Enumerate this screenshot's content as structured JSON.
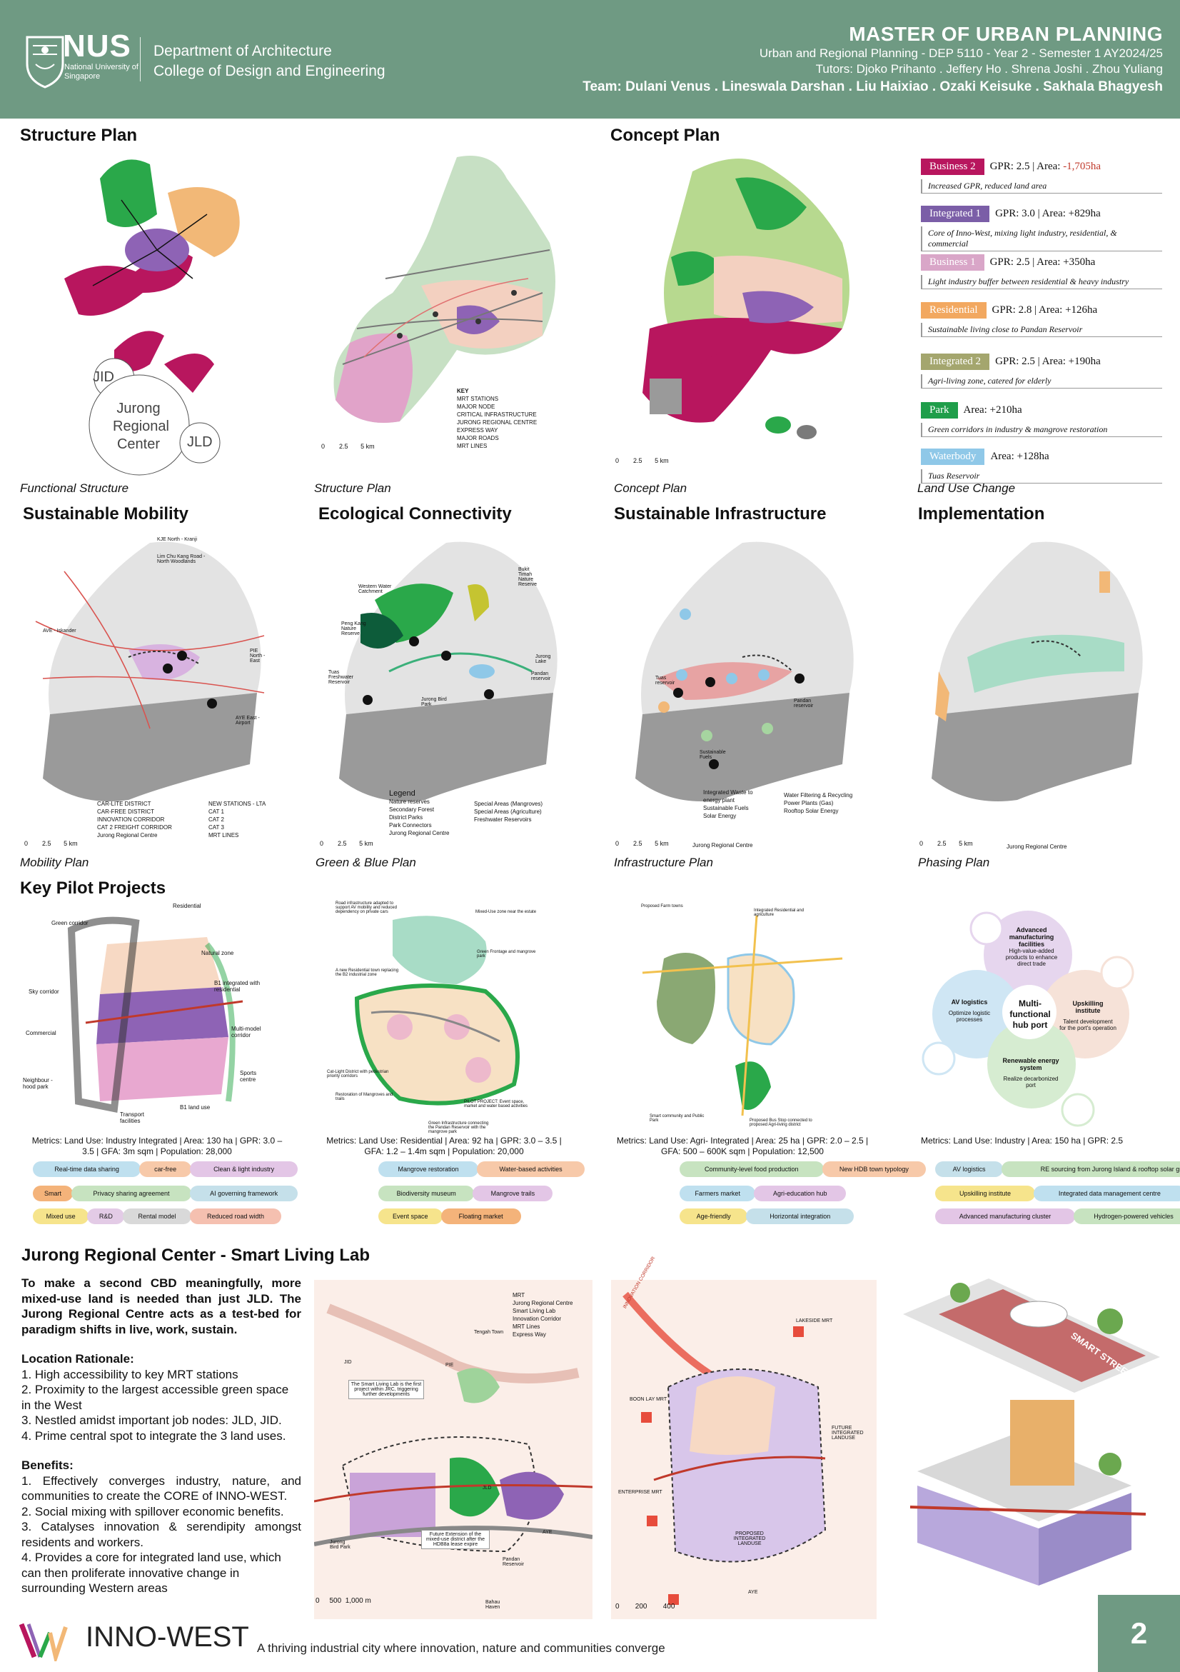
{
  "header": {
    "nus": "NUS",
    "nus_sub": "National University of Singapore",
    "dept_line1": "Department of Architecture",
    "dept_line2": "College of Design and Engineering",
    "title": "MASTER OF URBAN PLANNING",
    "course": "Urban and Regional Planning - DEP 5110 - Year 2 - Semester 1 AY2024/25",
    "tutors": "Tutors: Djoko Prihanto . Jeffery Ho . Shrena Joshi . Zhou Yuliang",
    "team": "Team: Dulani Venus . Lineswala Darshan . Liu Haixiao . Ozaki Keisuke . Sakhala Bhagyesh"
  },
  "sections": {
    "structure_plan": "Structure Plan",
    "concept_plan": "Concept Plan",
    "sustainable_mobility": "Sustainable Mobility",
    "ecological_connectivity": "Ecological Connectivity",
    "sustainable_infrastructure": "Sustainable Infrastructure",
    "implementation": "Implementation",
    "key_pilot": "Key Pilot Projects",
    "smart_lab": "Jurong Regional Center - Smart Living Lab"
  },
  "captions": {
    "functional": "Functional Structure",
    "structure": "Structure Plan",
    "concept": "Concept Plan",
    "landuse": "Land Use Change",
    "mobility": "Mobility Plan",
    "greenblue": "Green & Blue Plan",
    "infra": "Infrastructure Plan",
    "phasing": "Phasing Plan"
  },
  "functional": {
    "jid": "JID",
    "center": "Jurong Regional Center",
    "jld": "JLD"
  },
  "scale": {
    "zero": "0",
    "mid": "2.5",
    "end": "5 km"
  },
  "structure_key": {
    "title": "KEY",
    "items": [
      "MRT STATIONS",
      "MAJOR NODE",
      "CRITICAL INFRASTRUCTURE",
      "JURONG REGIONAL CENTRE",
      "EXPRESS WAY",
      "MAJOR ROADS",
      "MRT LINES"
    ]
  },
  "land_use": [
    {
      "name": "Business 2",
      "stat_a": "GPR: 2.5 | Area: ",
      "stat_b": "-1,705ha",
      "desc": "Increased GPR, reduced land area",
      "color": "#b8165e",
      "neg": true
    },
    {
      "name": "Integrated 1",
      "stat_a": "GPR: 3.0 | Area: +829ha",
      "stat_b": "",
      "desc": "Core of Inno-West, mixing light industry, residential, & commercial",
      "color": "#7b5ea7",
      "neg": false
    },
    {
      "name": "Business 1",
      "stat_a": "GPR: 2.5 | Area: +350ha",
      "stat_b": "",
      "desc": "Light industry buffer between residential & heavy industry",
      "color": "#d9a6c8",
      "neg": false
    },
    {
      "name": "Residential",
      "stat_a": "GPR: 2.8 | Area: +126ha",
      "stat_b": "",
      "desc": "Sustainable living close to Pandan Reservoir",
      "color": "#f2a860",
      "neg": false
    },
    {
      "name": "Integrated 2",
      "stat_a": "GPR: 2.5 | Area: +190ha",
      "stat_b": "",
      "desc": "Agri-living zone, catered for elderly",
      "color": "#a4a66e",
      "neg": false
    },
    {
      "name": "Park",
      "stat_a": "Area: +210ha",
      "stat_b": "",
      "desc": "Green corridors in industry & mangrove restoration",
      "color": "#1f9e4a",
      "neg": false
    },
    {
      "name": "Waterbody",
      "stat_a": "Area: +128ha",
      "stat_b": "",
      "desc": "Tuas Reservoir",
      "color": "#8fc8e8",
      "neg": false
    }
  ],
  "mobility": {
    "labels": [
      "KJE North - Kranji",
      "Lim Chu Kang Road - North Woodlands",
      "AVE - Iskander",
      "PIE North - East",
      "AYE East - Airport"
    ],
    "legend": [
      "CAR-LITE DISTRICT",
      "CAR-FREE DISTRICT",
      "INNOVATION CORRIDOR",
      "CAT 2 FREIGHT CORRIDOR",
      "Jurong Regional Centre",
      "NEW STATIONS - LTA",
      "CAT 1",
      "CAT 2",
      "CAT 3",
      "MRT LINES"
    ]
  },
  "ecology": {
    "labels": [
      "Western Water Catchment",
      "Bukit Timah Nature Reserve",
      "Peng Kang Nature Reserve",
      "Tuas Freshwater Reservoir",
      "Jurong Lake",
      "Pandan reservoir",
      "Jurong Bird Park"
    ],
    "legend_title": "Legend",
    "legend": [
      "Nature reserves",
      "Secondary Forest",
      "District Parks",
      "Park Connectors",
      "Jurong Regional Centre",
      "Special Areas (Mangroves)",
      "Special Areas (Agriculture)",
      "Freshwater Reservoirs"
    ]
  },
  "infra": {
    "labels": [
      "Tuas reservoir",
      "Pandan reservoir",
      "Sustainable Fuels"
    ],
    "legend": [
      "Integrated Waste to energy plant",
      "Sustainable Fuels",
      "Solar Energy",
      "Water Filtering & Recycling",
      "Power Plants (Gas)",
      "Rooftop Solar Energy",
      "Jurong Regional Centre"
    ]
  },
  "phasing": {
    "legend": "Jurong Regional Centre"
  },
  "pilots": [
    {
      "metrics": "Metrics: Land Use: Industry Integrated | Area: 130 ha | GPR: 3.0 – 3.5 | GFA: 3m sqm | Population: 28,000",
      "labels": [
        "Residential",
        "Green corridor",
        "Natural zone",
        "Sky corridor",
        "B1 integrated with residential",
        "Commercial",
        "Multi-model corridor",
        "Sports centre",
        "Neighbour -hood park",
        "B1 land use",
        "Transport facilities"
      ],
      "tags": [
        {
          "t": "Real-time data sharing",
          "c": "#bfe0ef"
        },
        {
          "t": "car-free",
          "c": "#f7c9a9"
        },
        {
          "t": "Clean & light industry",
          "c": "#e3c6e6"
        },
        {
          "t": "Smart",
          "c": "#f4b37a"
        },
        {
          "t": "Privacy sharing agreement",
          "c": "#c7e3c0"
        },
        {
          "t": "AI governing framework",
          "c": "#c5e0ea"
        },
        {
          "t": "Mixed use",
          "c": "#f6e48c"
        },
        {
          "t": "R&D",
          "c": "#e3cbe6"
        },
        {
          "t": "Rental model",
          "c": "#d9d9d9"
        },
        {
          "t": "Reduced road width",
          "c": "#f5c0b0"
        }
      ]
    },
    {
      "metrics": "Metrics: Land Use: Residential | Area: 92 ha | GPR: 3.0 – 3.5 | GFA: 1.2 – 1.4m sqm | Population: 20,000",
      "labels": [
        "Road infrastructure adapted to support AV mobility and reduced dependency on private cars",
        "Mixed-Use zone near the estate",
        "Green Frontage and mangrove park",
        "A new Residential town replacing the B2 industrial zone",
        "Cat-Light District with pedestrian priority corridors",
        "Restoration of Mangroves and trails",
        "PILOT PROJECT: Event space, market and water based activities",
        "Green Infrastructure connecting the Pandan Reservoir with the mangrove park"
      ],
      "tags": [
        {
          "t": "Mangrove restoration",
          "c": "#bfe0ef"
        },
        {
          "t": "Water-based activities",
          "c": "#f7c9a9"
        },
        {
          "t": "Biodiversity museum",
          "c": "#c7e3c0"
        },
        {
          "t": "Mangrove trails",
          "c": "#e3c6e6"
        },
        {
          "t": "Event space",
          "c": "#f6e48c"
        },
        {
          "t": "Floating market",
          "c": "#f4b37a"
        }
      ]
    },
    {
      "metrics": "Metrics: Land Use: Agri- Integrated | Area: 25 ha | GPR: 2.0 – 2.5 | GFA: 500 – 600K sqm | Population: 12,500",
      "labels": [
        "Proposed Farm towns",
        "Integrated Residential and agriculture",
        "Smart community and Public Park",
        "Proposed Bus Stop connected to proposed Agri-living district"
      ],
      "tags": [
        {
          "t": "Community-level food production",
          "c": "#c7e3c0"
        },
        {
          "t": "New HDB town typology",
          "c": "#f7c9a9"
        },
        {
          "t": "Farmers market",
          "c": "#bfe0ef"
        },
        {
          "t": "Agri-education hub",
          "c": "#e3c6e6"
        },
        {
          "t": "Age-friendly",
          "c": "#f6e48c"
        },
        {
          "t": "Horizontal integration",
          "c": "#c5e0ea"
        }
      ]
    },
    {
      "metrics": "Metrics: Land Use: Industry | Area: 150 ha | GPR: 2.5",
      "hub": "Multi-functional hub port",
      "circles": [
        {
          "title": "Advanced manufacturing facilities",
          "desc": "High-value-added products to enhance direct trade"
        },
        {
          "title": "AV logistics",
          "desc": "Optimize logistic processes"
        },
        {
          "title": "Upskilling institute",
          "desc": "Talent development for the port's operation"
        },
        {
          "title": "Renewable energy system",
          "desc": "Realize decarbonized port"
        }
      ],
      "tags": [
        {
          "t": "AV logistics",
          "c": "#c5e0ea"
        },
        {
          "t": "RE sourcing from Jurong Island & rooftop solar grid",
          "c": "#c7e3c0"
        },
        {
          "t": "Upskilling institute",
          "c": "#f6e48c"
        },
        {
          "t": "Integrated data management centre",
          "c": "#bfe0ef"
        },
        {
          "t": "Advanced manufacturing cluster",
          "c": "#e3c6e6"
        },
        {
          "t": "Hydrogen-powered vehicles",
          "c": "#c7e3c0"
        }
      ]
    }
  ],
  "smart_lab": {
    "lead": "To make a second CBD meaningfully, more mixed-use land is needed than just JLD. The Jurong Regional Centre acts as a test-bed for paradigm shifts in live, work, sustain.",
    "loc_title": "Location Rationale:",
    "loc": [
      "1. High accessibility to key MRT stations",
      "2. Proximity to the largest accessible green space in the West",
      "3. Nestled amidst important job nodes: JLD, JID.",
      "4. Prime central spot to integrate the 3 land uses."
    ],
    "ben_title": "Benefits:",
    "ben": [
      "1. Effectively converges industry, nature, and communities to create the CORE of INNO-WEST.",
      "2. Social mixing with spillover economic benefits.",
      "3. Catalyses innovation & serendipity amongst residents and workers.",
      "4. Provides a core for integrated land use, which can then proliferate innovative change in surrounding Western areas"
    ],
    "map1_labels": [
      "JID",
      "PIE",
      "Tengah Town",
      "The Smart Living Lab is the first project within JRC, triggering further developments",
      "JLD",
      "Future Extension of the mixed-use district after the HDB8a lease expire",
      "Jurong Bird Park",
      "AYE",
      "Pandan Reservoir",
      "Bahau Haven"
    ],
    "map1_legend": [
      "MRT",
      "Jurong Regional Centre",
      "Smart Living Lab",
      "Innovation Corridor",
      "MRT Lines",
      "Express Way"
    ],
    "map1_scale": [
      "0",
      "500",
      "1,000 m"
    ],
    "map2_labels": [
      "INNOVATION CORRIDOR",
      "LAKESIDE MRT",
      "BOON LAY MRT",
      "ENTERPRISE MRT",
      "FUTURE INTEGRATED LANDUSE",
      "PROPOSED INTEGRATED LANDUSE",
      "AYE"
    ],
    "map2_scale": [
      "0",
      "200",
      "400"
    ],
    "axo_label": "SMART STREETS"
  },
  "footer": {
    "brand": "INNO-WEST",
    "tagline": "A thriving industrial city where innovation, nature and communities converge",
    "page": "2"
  }
}
